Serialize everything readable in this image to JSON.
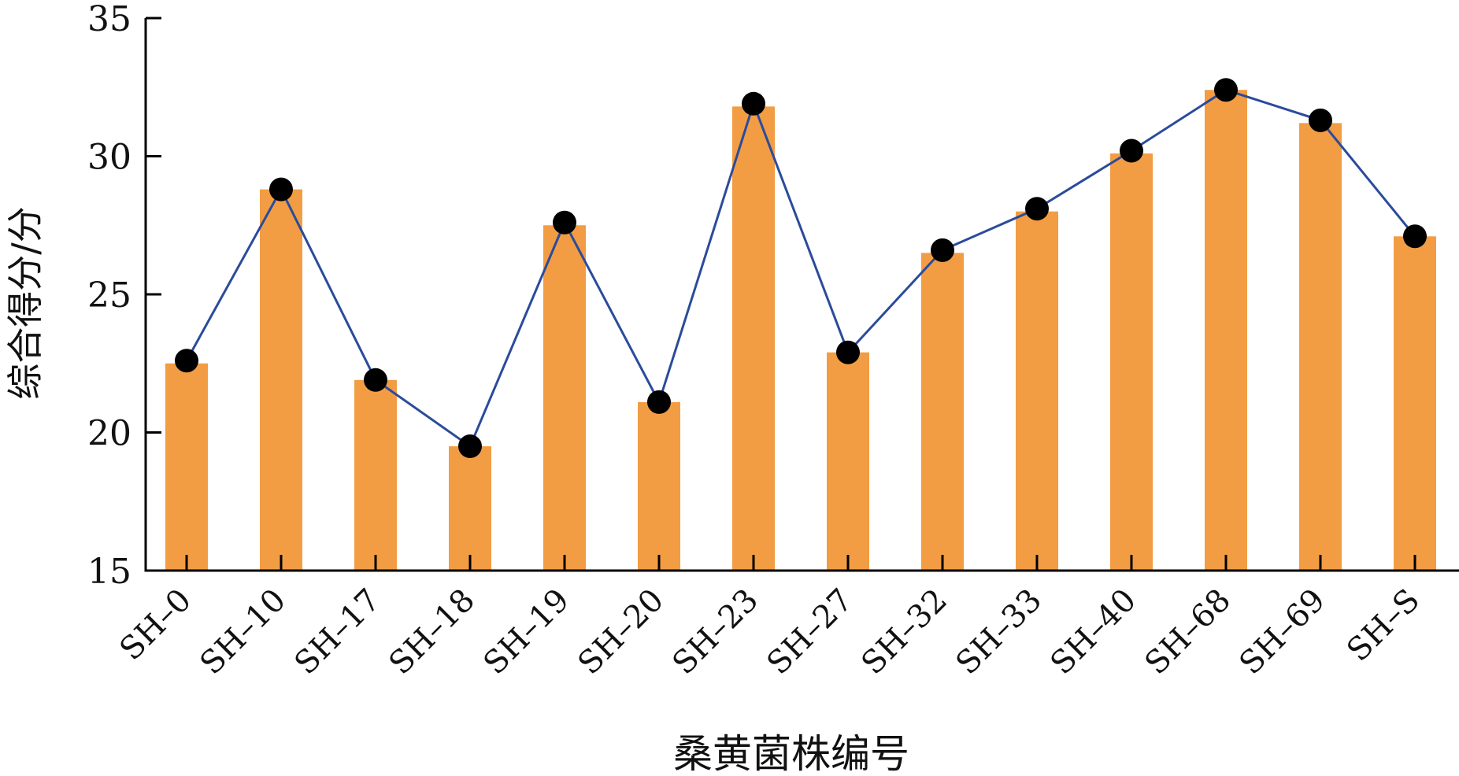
{
  "chart_data": {
    "type": "bar",
    "xlabel": "桑黄菌株编号",
    "ylabel": "综合得分/分",
    "categories": [
      "SH–0",
      "SH–10",
      "SH–17",
      "SH–18",
      "SH–19",
      "SH–20",
      "SH–23",
      "SH–27",
      "SH–32",
      "SH–33",
      "SH–40",
      "SH–68",
      "SH–69",
      "SH–S"
    ],
    "ylim": [
      15,
      35
    ],
    "yticks": [
      "15",
      "20",
      "25",
      "30",
      "35"
    ],
    "grid": false,
    "legend": "none",
    "series": [
      {
        "kind": "bar",
        "values": [
          22.5,
          28.8,
          21.9,
          19.5,
          27.5,
          21.1,
          31.8,
          22.9,
          26.5,
          28.0,
          30.1,
          32.4,
          31.2,
          27.1
        ]
      },
      {
        "kind": "line",
        "values": [
          22.6,
          28.8,
          21.9,
          19.5,
          27.6,
          21.1,
          31.9,
          22.9,
          26.6,
          28.1,
          30.2,
          32.4,
          31.3,
          27.1
        ]
      }
    ],
    "colors": {
      "bar": "#F29D44",
      "line": "#2B4B9B",
      "marker": "#000000",
      "axis": "#000000"
    }
  }
}
